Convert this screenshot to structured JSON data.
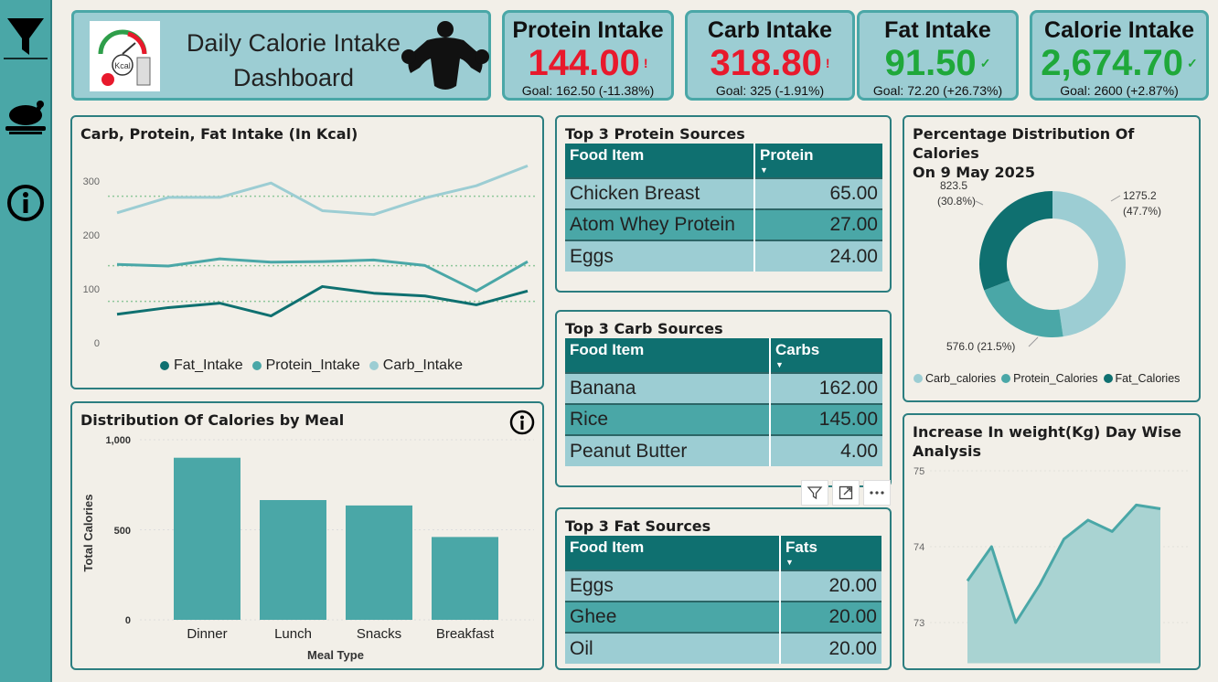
{
  "header": {
    "title_line1": "Daily Calorie Intake",
    "title_line2": "Dashboard",
    "logo_text": "Kcal"
  },
  "kpis": [
    {
      "title": "Protein Intake",
      "value": "144.00",
      "mark": "!",
      "goal": "Goal: 162.50 (-11.38%)",
      "status": "below",
      "color": "#e8192c"
    },
    {
      "title": "Carb Intake",
      "value": "318.80",
      "mark": "!",
      "goal": "Goal: 325 (-1.91%)",
      "status": "below",
      "color": "#e8192c"
    },
    {
      "title": "Fat Intake",
      "value": "91.50",
      "mark": "✓",
      "goal": "Goal: 72.20 (+26.73%)",
      "status": "above",
      "color": "#1fa83a"
    },
    {
      "title": "Calorie Intake",
      "value": "2,674.70",
      "mark": "✓",
      "goal": "Goal: 2600 (+2.87%)",
      "status": "above",
      "color": "#1fa83a"
    }
  ],
  "sidebar": {
    "icons": [
      "filter-icon",
      "roast-chicken-icon",
      "info-icon"
    ]
  },
  "line_card": {
    "title": "Carb, Protein, Fat Intake (In Kcal)",
    "legend": [
      "Fat_Intake",
      "Protein_Intake",
      "Carb_Intake"
    ],
    "y_ticks": [
      "300",
      "200",
      "100",
      "0"
    ]
  },
  "bar_card": {
    "title": "Distribution Of Calories by Meal",
    "y_ticks": [
      "1,000",
      "500",
      "0"
    ],
    "ylabel": "Total Calories",
    "xlabel": "Meal Type"
  },
  "donut_card": {
    "title_line1": "Percentage Distribution Of Calories",
    "title_line2": "On 9 May 2025",
    "labels": {
      "carb_value": "1275.2",
      "carb_pct": "(47.7%)",
      "protein_value": "576.0 (21.5%)",
      "fat_value": "823.5",
      "fat_pct": "(30.8%)"
    },
    "legend": [
      "Carb_calories",
      "Protein_Calories",
      "Fat_Calories"
    ]
  },
  "weight_card": {
    "title_line1": "Increase In weight(Kg) Day Wise",
    "title_line2": "Analysis",
    "y_ticks": [
      "75",
      "74",
      "73"
    ]
  },
  "protein_table": {
    "title": "Top 3 Protein Sources",
    "headers": [
      "Food Item",
      "Protein"
    ],
    "rows": [
      [
        "Chicken Breast",
        "65.00"
      ],
      [
        "Atom Whey Protein",
        "27.00"
      ],
      [
        "Eggs",
        "24.00"
      ]
    ]
  },
  "carb_table": {
    "title": "Top 3 Carb Sources",
    "headers": [
      "Food Item",
      "Carbs"
    ],
    "rows": [
      [
        "Banana",
        "162.00"
      ],
      [
        "Rice",
        "145.00"
      ],
      [
        "Peanut Butter",
        "4.00"
      ]
    ]
  },
  "fat_table": {
    "title": "Top 3 Fat Sources",
    "headers": [
      "Food Item",
      "Fats"
    ],
    "rows": [
      [
        "Eggs",
        "20.00"
      ],
      [
        "Ghee",
        "20.00"
      ],
      [
        "Oil",
        "20.00"
      ]
    ]
  },
  "visual_header_icons": [
    "filter-icon",
    "focus-mode-icon",
    "more-options-icon"
  ],
  "colors": {
    "teal_dark": "#0f7070",
    "teal_mid": "#4aa7a7",
    "teal_light": "#9ccdd3",
    "bg": "#f2efe8",
    "red": "#e8192c",
    "green": "#1fa83a"
  },
  "chart_data": [
    {
      "type": "line",
      "title": "Carb, Protein, Fat Intake (In Kcal)",
      "x": [
        1,
        2,
        3,
        4,
        5,
        6,
        7,
        8,
        9
      ],
      "ylim": [
        0,
        350
      ],
      "y_ticks": [
        0,
        100,
        200,
        300
      ],
      "grid": false,
      "legend_position": "bottom",
      "series": [
        {
          "name": "Fat_Intake",
          "color": "#0f7070",
          "values": [
            50,
            62,
            70,
            47,
            100,
            88,
            83,
            67,
            92
          ]
        },
        {
          "name": "Protein_Intake",
          "color": "#4aa7a7",
          "values": [
            140,
            137,
            150,
            144,
            145,
            148,
            138,
            92,
            145
          ]
        },
        {
          "name": "Carb_Intake",
          "color": "#9ccdd3",
          "values": [
            233,
            261,
            261,
            287,
            237,
            230,
            260,
            282,
            318
          ]
        }
      ]
    },
    {
      "type": "bar",
      "title": "Distribution Of Calories by Meal",
      "categories": [
        "Dinner",
        "Lunch",
        "Snacks",
        "Breakfast"
      ],
      "values": [
        900,
        665,
        635,
        460
      ],
      "xlabel": "Meal Type",
      "ylabel": "Total Calories",
      "ylim": [
        0,
        1000
      ],
      "y_ticks": [
        0,
        500,
        1000
      ],
      "color": "#4aa7a7"
    },
    {
      "type": "pie",
      "title": "Percentage Distribution Of Calories On 9 May 2025",
      "legend_position": "bottom",
      "slices": [
        {
          "name": "Carb_calories",
          "value": 1275.2,
          "pct": 47.7,
          "color": "#9ccdd3"
        },
        {
          "name": "Protein_Calories",
          "value": 576.0,
          "pct": 21.5,
          "color": "#4aa7a7"
        },
        {
          "name": "Fat_Calories",
          "value": 823.5,
          "pct": 30.8,
          "color": "#0f7070"
        }
      ]
    },
    {
      "type": "area",
      "title": "Increase In weight(Kg) Day Wise Analysis",
      "x": [
        1,
        2,
        3,
        4,
        5,
        6,
        7,
        8,
        9
      ],
      "values": [
        73.55,
        74.0,
        73.0,
        73.5,
        74.1,
        74.35,
        74.2,
        74.55,
        74.5
      ],
      "ylim": [
        72.5,
        75.2
      ],
      "y_ticks": [
        73,
        74,
        75
      ],
      "color": "#4aa7a7"
    }
  ]
}
